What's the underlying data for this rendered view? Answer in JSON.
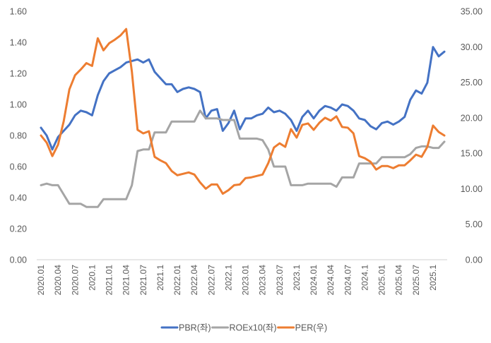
{
  "chart_data": {
    "type": "line",
    "title": "",
    "xlabel": "",
    "ylabel_left": "",
    "ylabel_right": "",
    "y_left_range": [
      0,
      1.6
    ],
    "y_left_ticks": [
      "0.00",
      "0.20",
      "0.40",
      "0.60",
      "0.80",
      "1.00",
      "1.20",
      "1.40",
      "1.60"
    ],
    "y_right_range": [
      0,
      35
    ],
    "y_right_ticks": [
      "0.00",
      "5.00",
      "10.00",
      "15.00",
      "20.00",
      "25.00",
      "30.00",
      "35.00"
    ],
    "grid": false,
    "legend_position": "bottom",
    "x_tick_labels": [
      {
        "i": 0,
        "label": "2020.01"
      },
      {
        "i": 3,
        "label": "2020.04"
      },
      {
        "i": 6,
        "label": "2020.07"
      },
      {
        "i": 9,
        "label": "2020.1"
      },
      {
        "i": 12,
        "label": "2021.01"
      },
      {
        "i": 15,
        "label": "2021.04"
      },
      {
        "i": 18,
        "label": "2021.07"
      },
      {
        "i": 21,
        "label": "2021.1"
      },
      {
        "i": 24,
        "label": "2022.01"
      },
      {
        "i": 27,
        "label": "2022.04"
      },
      {
        "i": 30,
        "label": "2022.07"
      },
      {
        "i": 33,
        "label": "2022.1"
      },
      {
        "i": 36,
        "label": "2023.01"
      },
      {
        "i": 39,
        "label": "2023.04"
      },
      {
        "i": 42,
        "label": "2023.07"
      },
      {
        "i": 45,
        "label": "2023.1"
      },
      {
        "i": 48,
        "label": "2024.01"
      },
      {
        "i": 51,
        "label": "2024.04"
      },
      {
        "i": 54,
        "label": "2024.07"
      },
      {
        "i": 57,
        "label": "2024.1"
      },
      {
        "i": 60,
        "label": "2025.01"
      },
      {
        "i": 63,
        "label": "2025.04"
      },
      {
        "i": 66,
        "label": "2025.07"
      },
      {
        "i": 69,
        "label": "2025.1"
      }
    ],
    "series": [
      {
        "name": "PBR(좌)",
        "axis": "left",
        "color": "#4472C4",
        "values": [
          0.85,
          0.8,
          0.71,
          0.79,
          0.83,
          0.87,
          0.93,
          0.96,
          0.95,
          0.93,
          1.06,
          1.15,
          1.2,
          1.22,
          1.24,
          1.27,
          1.28,
          1.29,
          1.27,
          1.29,
          1.21,
          1.17,
          1.13,
          1.13,
          1.08,
          1.1,
          1.11,
          1.1,
          1.08,
          0.91,
          0.96,
          0.97,
          0.83,
          0.88,
          0.96,
          0.84,
          0.91,
          0.91,
          0.93,
          0.94,
          0.98,
          0.95,
          0.96,
          0.94,
          0.9,
          0.83,
          0.92,
          0.96,
          0.91,
          0.96,
          0.99,
          0.98,
          0.96,
          1.0,
          0.99,
          0.96,
          0.91,
          0.9,
          0.86,
          0.84,
          0.88,
          0.89,
          0.87,
          0.89,
          0.92,
          1.03,
          1.09,
          1.07,
          1.14,
          1.37,
          1.31,
          1.34
        ]
      },
      {
        "name": "ROEx10(좌)",
        "axis": "left",
        "color": "#A5A5A5",
        "values": [
          0.48,
          0.49,
          0.48,
          0.48,
          0.42,
          0.36,
          0.36,
          0.36,
          0.34,
          0.34,
          0.34,
          0.39,
          0.39,
          0.39,
          0.39,
          0.39,
          0.48,
          0.7,
          0.71,
          0.71,
          0.82,
          0.82,
          0.82,
          0.89,
          0.89,
          0.89,
          0.89,
          0.89,
          0.96,
          0.91,
          0.91,
          0.91,
          0.9,
          0.9,
          0.9,
          0.78,
          0.78,
          0.78,
          0.78,
          0.77,
          0.71,
          0.6,
          0.6,
          0.6,
          0.48,
          0.48,
          0.48,
          0.49,
          0.49,
          0.49,
          0.49,
          0.49,
          0.47,
          0.53,
          0.53,
          0.53,
          0.62,
          0.62,
          0.62,
          0.62,
          0.66,
          0.66,
          0.66,
          0.66,
          0.66,
          0.68,
          0.72,
          0.73,
          0.73,
          0.72,
          0.72,
          0.76
        ]
      },
      {
        "name": "PER(우)",
        "axis": "right",
        "color": "#ED7D31",
        "values": [
          17.5,
          16.5,
          14.6,
          16.2,
          19.5,
          24.0,
          26.0,
          26.8,
          27.7,
          27.3,
          31.2,
          29.5,
          30.5,
          31.0,
          31.6,
          32.5,
          26.5,
          18.3,
          17.8,
          18.1,
          14.5,
          14.0,
          13.6,
          12.5,
          11.9,
          12.1,
          12.3,
          12.0,
          10.9,
          10.0,
          10.6,
          10.6,
          9.3,
          9.8,
          10.5,
          10.6,
          11.5,
          11.6,
          11.8,
          12.0,
          13.6,
          15.8,
          16.4,
          15.9,
          18.4,
          17.2,
          19.0,
          19.2,
          18.3,
          19.3,
          20.0,
          19.6,
          20.2,
          18.7,
          18.6,
          17.8,
          14.6,
          14.3,
          13.8,
          12.7,
          13.2,
          13.2,
          12.9,
          13.3,
          13.3,
          14.0,
          14.8,
          14.5,
          15.9,
          18.9,
          18.0,
          17.5
        ]
      }
    ]
  }
}
